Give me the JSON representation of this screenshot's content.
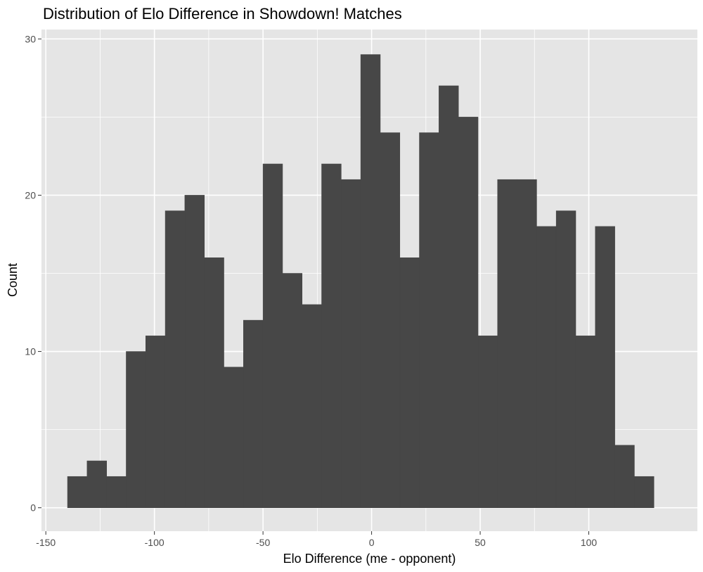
{
  "chart_data": {
    "type": "bar",
    "title": "Distribution of Elo Difference in Showdown! Matches",
    "xlabel": "Elo Difference (me - opponent)",
    "ylabel": "Count",
    "xlim": [
      -152,
      150
    ],
    "ylim": [
      -1.5,
      30.6
    ],
    "x_ticks": [
      -150,
      -100,
      -50,
      0,
      50,
      100
    ],
    "x_tick_labels": [
      "-150",
      "-100",
      "-50",
      "0",
      "50",
      "100"
    ],
    "y_ticks": [
      0,
      10,
      20,
      30
    ],
    "y_tick_labels": [
      "0",
      "10",
      "20",
      "30"
    ],
    "bin_width": 9,
    "bin_starts": [
      -140,
      -131,
      -122,
      -113,
      -104,
      -95,
      -86,
      -77,
      -68,
      -59,
      -50,
      -41,
      -32,
      -23,
      -14,
      -5,
      4,
      13,
      22,
      31,
      40,
      49,
      58,
      67,
      76,
      85,
      94,
      103,
      112,
      121
    ],
    "values": [
      2,
      3,
      2,
      10,
      11,
      19,
      20,
      16,
      9,
      12,
      22,
      15,
      13,
      22,
      21,
      29,
      24,
      16,
      24,
      27,
      25,
      11,
      21,
      21,
      18,
      19,
      11,
      18,
      4,
      2
    ],
    "grid": true,
    "legend": "none",
    "colors": {
      "bar": "#474747",
      "panel": "#e5e5e5",
      "grid": "#ffffff"
    }
  }
}
